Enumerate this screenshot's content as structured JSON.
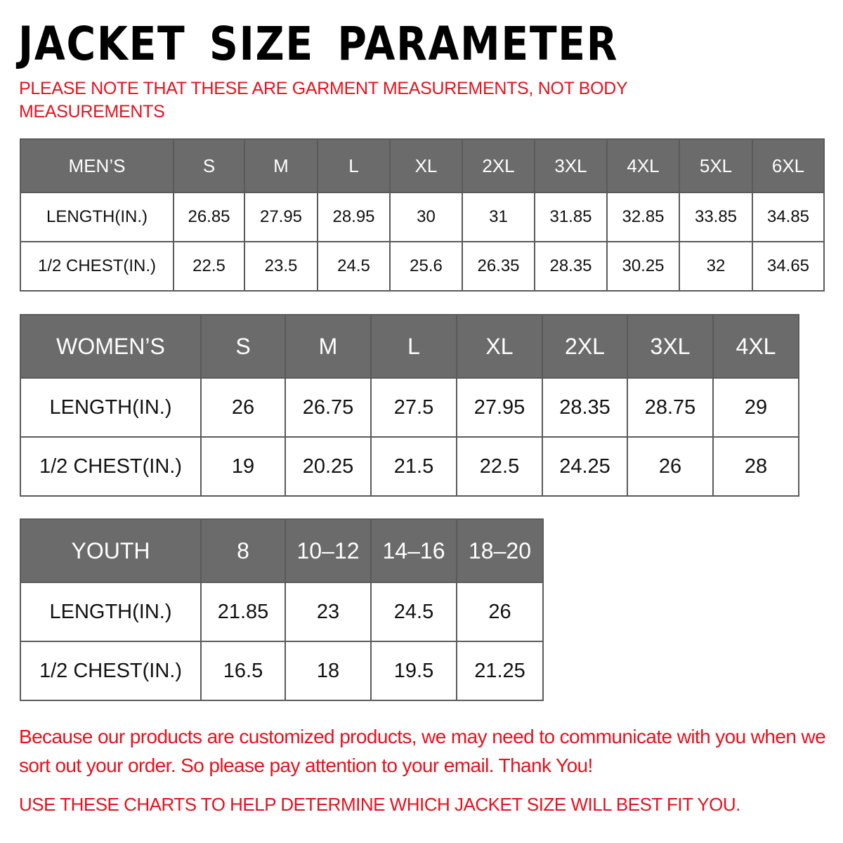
{
  "title": "JACKET SIZE PARAMETER",
  "note": "PLEASE NOTE THAT THESE ARE GARMENT MEASUREMENTS, NOT BODY MEASUREMENTS",
  "colors": {
    "header_bg": "#6b6b6b",
    "accent_red": "#e8101c"
  },
  "mens": {
    "header": [
      "MEN’S",
      "S",
      "M",
      "L",
      "XL",
      "2XL",
      "3XL",
      "4XL",
      "5XL",
      "6XL"
    ],
    "rows": [
      [
        "LENGTH(IN.)",
        "26.85",
        "27.95",
        "28.95",
        "30",
        "31",
        "31.85",
        "32.85",
        "33.85",
        "34.85"
      ],
      [
        "1/2 CHEST(IN.)",
        "22.5",
        "23.5",
        "24.5",
        "25.6",
        "26.35",
        "28.35",
        "30.25",
        "32",
        "34.65"
      ]
    ]
  },
  "womens": {
    "header": [
      "WOMEN’S",
      "S",
      "M",
      "L",
      "XL",
      "2XL",
      "3XL",
      "4XL"
    ],
    "rows": [
      [
        "LENGTH(IN.)",
        "26",
        "26.75",
        "27.5",
        "27.95",
        "28.35",
        "28.75",
        "29"
      ],
      [
        "1/2 CHEST(IN.)",
        "19",
        "20.25",
        "21.5",
        "22.5",
        "24.25",
        "26",
        "28"
      ]
    ]
  },
  "youth": {
    "header": [
      "YOUTH",
      "8",
      "10–12",
      "14–16",
      "18–20"
    ],
    "rows": [
      [
        "LENGTH(IN.)",
        "21.85",
        "23",
        "24.5",
        "26"
      ],
      [
        "1/2 CHEST(IN.)",
        "16.5",
        "18",
        "19.5",
        "21.25"
      ]
    ]
  },
  "message": "Because our products are customized products, we may need to communicate with you when we sort out your order. So please pay attention to your email. Thank You!",
  "footer": "USE THESE CHARTS TO HELP DETERMINE WHICH JACKET SIZE WILL BEST FIT YOU."
}
